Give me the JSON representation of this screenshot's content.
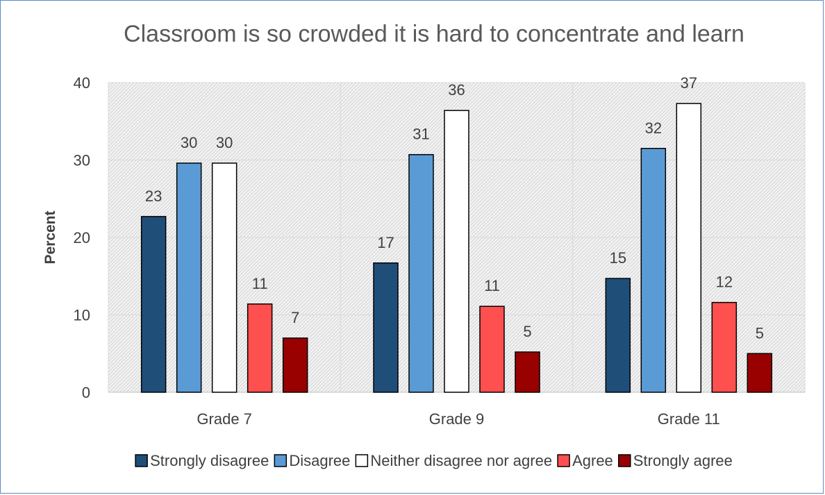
{
  "chart_data": {
    "type": "bar",
    "title": "Classroom is so crowded it is hard to concentrate and learn",
    "ylabel": "Percent",
    "xlabel": "",
    "ylim": [
      0,
      40
    ],
    "yticks": [
      0,
      10,
      20,
      30,
      40
    ],
    "grid": true,
    "legend_position": "bottom",
    "categories": [
      "Grade 7",
      "Grade 9",
      "Grade 11"
    ],
    "series": [
      {
        "name": "Strongly disagree",
        "color": "#1f4e79",
        "values": [
          22.7,
          16.7,
          14.7
        ],
        "labels": [
          "23",
          "17",
          "15"
        ]
      },
      {
        "name": "Disagree",
        "color": "#5b9bd5",
        "values": [
          29.6,
          30.7,
          31.5
        ],
        "labels": [
          "30",
          "31",
          "32"
        ]
      },
      {
        "name": "Neither disagree nor agree",
        "color": "#ffffff",
        "values": [
          29.6,
          36.4,
          37.3
        ],
        "labels": [
          "30",
          "36",
          "37"
        ]
      },
      {
        "name": "Agree",
        "color": "#ff5050",
        "values": [
          11.4,
          11.1,
          11.6
        ],
        "labels": [
          "11",
          "11",
          "12"
        ]
      },
      {
        "name": "Strongly agree",
        "color": "#990000",
        "values": [
          7.0,
          5.2,
          5.0
        ],
        "labels": [
          "7",
          "5",
          "5"
        ]
      }
    ]
  }
}
